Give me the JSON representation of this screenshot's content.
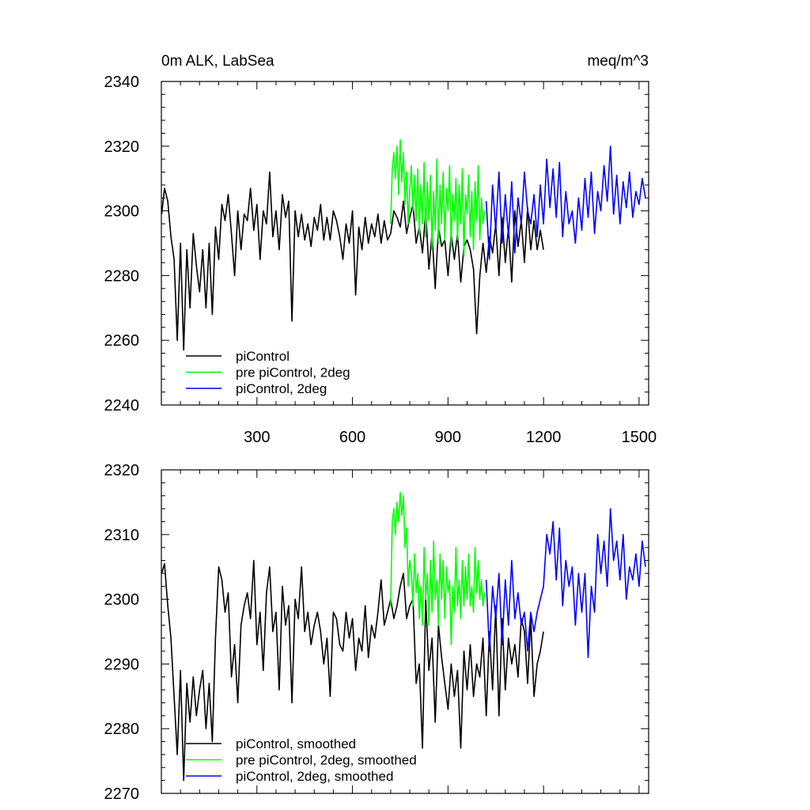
{
  "chart_data": [
    {
      "type": "line",
      "title": "0m ALK, LabSea",
      "units": "meq/m^3",
      "xlim": [
        0,
        1530
      ],
      "ylim": [
        2240,
        2340
      ],
      "xticks": [
        300,
        600,
        900,
        1200,
        1500
      ],
      "yticks": [
        2240,
        2260,
        2280,
        2300,
        2320,
        2340
      ],
      "xtick_labels_shown": true,
      "grid": false,
      "legend_position": "bottom-left",
      "series": [
        {
          "name": "piControl",
          "color": "#000000",
          "x": [
            1,
            10,
            20,
            30,
            40,
            50,
            60,
            70,
            80,
            90,
            100,
            110,
            120,
            130,
            140,
            150,
            160,
            170,
            180,
            190,
            200,
            210,
            220,
            230,
            240,
            250,
            260,
            270,
            280,
            290,
            300,
            310,
            320,
            330,
            340,
            350,
            360,
            370,
            380,
            390,
            400,
            410,
            420,
            430,
            440,
            450,
            460,
            470,
            480,
            490,
            500,
            510,
            520,
            530,
            540,
            550,
            560,
            570,
            580,
            590,
            600,
            610,
            620,
            630,
            640,
            650,
            660,
            670,
            680,
            690,
            700,
            710,
            720,
            730,
            740,
            750,
            760,
            770,
            780,
            790,
            800,
            810,
            820,
            830,
            840,
            850,
            860,
            870,
            880,
            890,
            900,
            910,
            920,
            930,
            940,
            950,
            960,
            970,
            980,
            990,
            1000,
            1010,
            1020,
            1030,
            1040,
            1050,
            1060,
            1070,
            1080,
            1090,
            1100,
            1110,
            1120,
            1130,
            1140,
            1150,
            1160,
            1170,
            1180,
            1190,
            1200
          ],
          "y": [
            2299,
            2307,
            2303,
            2292,
            2285,
            2260,
            2290,
            2257,
            2288,
            2270,
            2293,
            2283,
            2275,
            2288,
            2270,
            2290,
            2268,
            2295,
            2285,
            2302,
            2297,
            2305,
            2293,
            2280,
            2300,
            2288,
            2299,
            2297,
            2307,
            2294,
            2302,
            2285,
            2300,
            2296,
            2312,
            2292,
            2300,
            2288,
            2305,
            2298,
            2303,
            2266,
            2300,
            2292,
            2299,
            2291,
            2296,
            2289,
            2298,
            2294,
            2302,
            2291,
            2298,
            2291,
            2300,
            2297,
            2292,
            2285,
            2296,
            2290,
            2300,
            2274,
            2295,
            2288,
            2298,
            2290,
            2296,
            2292,
            2299,
            2290,
            2297,
            2291,
            2293,
            2300,
            2298,
            2295,
            2303,
            2293,
            2298,
            2302,
            2290,
            2295,
            2287,
            2300,
            2282,
            2293,
            2276,
            2295,
            2289,
            2291,
            2280,
            2293,
            2285,
            2293,
            2278,
            2289,
            2291,
            2288,
            2282,
            2262,
            2280,
            2290,
            2281,
            2292,
            2287,
            2296,
            2280,
            2298,
            2284,
            2295,
            2278,
            2300,
            2289,
            2297,
            2284,
            2301,
            2288,
            2297,
            2288,
            2294,
            2288
          ]
        },
        {
          "name": "pre piControl, 2deg",
          "color": "#00ff00",
          "x": [
            720,
            725,
            730,
            735,
            740,
            745,
            750,
            755,
            760,
            765,
            770,
            775,
            780,
            785,
            790,
            795,
            800,
            805,
            810,
            815,
            820,
            825,
            830,
            835,
            840,
            845,
            850,
            855,
            860,
            865,
            870,
            875,
            880,
            885,
            890,
            895,
            900,
            905,
            910,
            915,
            920,
            925,
            930,
            935,
            940,
            945,
            950,
            955,
            960,
            965,
            970,
            975,
            980,
            985,
            990,
            995,
            1000,
            1005,
            1010,
            1015
          ],
          "y": [
            2296,
            2313,
            2318,
            2310,
            2320,
            2305,
            2322,
            2309,
            2318,
            2302,
            2312,
            2296,
            2306,
            2314,
            2300,
            2311,
            2297,
            2313,
            2293,
            2308,
            2296,
            2315,
            2292,
            2309,
            2297,
            2311,
            2288,
            2306,
            2294,
            2316,
            2290,
            2308,
            2296,
            2312,
            2291,
            2307,
            2300,
            2314,
            2289,
            2305,
            2297,
            2310,
            2291,
            2308,
            2296,
            2313,
            2286,
            2305,
            2299,
            2311,
            2292,
            2306,
            2288,
            2309,
            2297,
            2314,
            2291,
            2304,
            2296,
            2300
          ]
        },
        {
          "name": "piControl, 2deg",
          "color": "#0000ff",
          "x": [
            1020,
            1030,
            1040,
            1050,
            1060,
            1070,
            1080,
            1090,
            1100,
            1110,
            1120,
            1130,
            1140,
            1150,
            1160,
            1170,
            1180,
            1190,
            1200,
            1210,
            1220,
            1230,
            1240,
            1250,
            1260,
            1270,
            1280,
            1290,
            1300,
            1310,
            1320,
            1330,
            1340,
            1350,
            1360,
            1370,
            1380,
            1390,
            1400,
            1410,
            1420,
            1430,
            1440,
            1450,
            1460,
            1470,
            1480,
            1490,
            1500,
            1510,
            1520
          ],
          "y": [
            2303,
            2285,
            2308,
            2294,
            2312,
            2290,
            2305,
            2292,
            2309,
            2287,
            2304,
            2296,
            2312,
            2300,
            2296,
            2305,
            2292,
            2308,
            2296,
            2316,
            2301,
            2313,
            2298,
            2315,
            2292,
            2306,
            2296,
            2300,
            2290,
            2304,
            2294,
            2310,
            2298,
            2312,
            2293,
            2306,
            2300,
            2314,
            2303,
            2320,
            2299,
            2311,
            2296,
            2309,
            2301,
            2312,
            2298,
            2306,
            2302,
            2310,
            2304
          ]
        }
      ]
    },
    {
      "type": "line",
      "title": "",
      "units": "",
      "xlim": [
        0,
        1530
      ],
      "ylim": [
        2270,
        2320
      ],
      "xticks": [
        300,
        600,
        900,
        1200,
        1500
      ],
      "yticks": [
        2270,
        2280,
        2290,
        2300,
        2310,
        2320
      ],
      "xtick_labels_shown": false,
      "grid": false,
      "legend_position": "bottom-left",
      "series": [
        {
          "name": "piControl, smoothed",
          "color": "#000000",
          "x": [
            1,
            10,
            20,
            30,
            40,
            50,
            60,
            70,
            80,
            90,
            100,
            110,
            120,
            130,
            140,
            150,
            160,
            170,
            180,
            190,
            200,
            210,
            220,
            230,
            240,
            250,
            260,
            270,
            280,
            290,
            300,
            310,
            320,
            330,
            340,
            350,
            360,
            370,
            380,
            390,
            400,
            410,
            420,
            430,
            440,
            450,
            460,
            470,
            480,
            490,
            500,
            510,
            520,
            530,
            540,
            550,
            560,
            570,
            580,
            590,
            600,
            610,
            620,
            630,
            640,
            650,
            660,
            670,
            680,
            690,
            700,
            710,
            720,
            730,
            740,
            750,
            760,
            770,
            780,
            790,
            800,
            810,
            820,
            830,
            840,
            850,
            860,
            870,
            880,
            890,
            900,
            910,
            920,
            930,
            940,
            950,
            960,
            970,
            980,
            990,
            1000,
            1010,
            1020,
            1030,
            1040,
            1050,
            1060,
            1070,
            1080,
            1090,
            1100,
            1110,
            1120,
            1130,
            1140,
            1150,
            1160,
            1170,
            1180,
            1190,
            1200
          ],
          "y": [
            2304,
            2305.5,
            2299,
            2294,
            2285,
            2276,
            2289,
            2272,
            2287,
            2281,
            2288,
            2282,
            2286,
            2289,
            2280,
            2287,
            2278,
            2294,
            2305,
            2303,
            2298,
            2301,
            2288,
            2293,
            2284,
            2296,
            2299,
            2301,
            2297,
            2306,
            2293,
            2298,
            2289,
            2301,
            2305,
            2295,
            2298,
            2286,
            2302,
            2296,
            2299,
            2284,
            2300,
            2297,
            2305,
            2295,
            2298,
            2293,
            2296,
            2298,
            2295,
            2290,
            2294,
            2285,
            2298,
            2297,
            2293,
            2292,
            2298,
            2294,
            2297,
            2289,
            2294,
            2292,
            2299,
            2291,
            2296,
            2294,
            2298,
            2303,
            2296,
            2298,
            2300,
            2297,
            2299,
            2302,
            2304,
            2297,
            2299,
            2300,
            2287,
            2290,
            2277,
            2300,
            2289,
            2294,
            2281,
            2296,
            2291,
            2287,
            2283,
            2290,
            2285,
            2289,
            2277,
            2292,
            2286,
            2293,
            2285,
            2290,
            2288,
            2294,
            2282,
            2295,
            2286,
            2299,
            2282,
            2297,
            2286,
            2294,
            2290,
            2293,
            2288,
            2297,
            2295,
            2287,
            2297,
            2285,
            2290,
            2292,
            2295
          ]
        },
        {
          "name": "pre piControl, 2deg, smoothed",
          "color": "#00ff00",
          "x": [
            720,
            725,
            730,
            735,
            740,
            745,
            750,
            755,
            760,
            765,
            770,
            775,
            780,
            785,
            790,
            795,
            800,
            805,
            810,
            815,
            820,
            825,
            830,
            835,
            840,
            845,
            850,
            855,
            860,
            865,
            870,
            875,
            880,
            885,
            890,
            895,
            900,
            905,
            910,
            915,
            920,
            925,
            930,
            935,
            940,
            945,
            950,
            955,
            960,
            965,
            970,
            975,
            980,
            985,
            990,
            995,
            1000,
            1005,
            1010,
            1015
          ],
          "y": [
            2299,
            2312,
            2314,
            2310,
            2315,
            2312,
            2316.5,
            2313,
            2316,
            2308,
            2311,
            2302,
            2306,
            2304,
            2299,
            2307,
            2301,
            2304,
            2297,
            2302,
            2296,
            2308,
            2300,
            2304,
            2296,
            2306,
            2298,
            2309,
            2300,
            2303,
            2296,
            2307,
            2300,
            2306,
            2297,
            2305,
            2301,
            2303,
            2293,
            2302,
            2298,
            2308,
            2299,
            2303,
            2297,
            2306,
            2299,
            2305,
            2300,
            2307,
            2299,
            2302,
            2298,
            2308,
            2301,
            2306,
            2300,
            2303,
            2299,
            2301
          ]
        },
        {
          "name": "piControl, 2deg, smoothed",
          "color": "#0000ff",
          "x": [
            1020,
            1030,
            1040,
            1050,
            1060,
            1070,
            1080,
            1090,
            1100,
            1110,
            1120,
            1130,
            1140,
            1150,
            1160,
            1170,
            1180,
            1190,
            1200,
            1210,
            1220,
            1230,
            1240,
            1250,
            1260,
            1270,
            1280,
            1290,
            1300,
            1310,
            1320,
            1330,
            1340,
            1350,
            1360,
            1370,
            1380,
            1390,
            1400,
            1410,
            1420,
            1430,
            1440,
            1450,
            1460,
            1470,
            1480,
            1490,
            1500,
            1510,
            1520
          ],
          "y": [
            2303,
            2292,
            2302,
            2297,
            2304,
            2293,
            2303,
            2296,
            2306,
            2297,
            2301,
            2296,
            2298,
            2292,
            2298,
            2295,
            2298,
            2300,
            2302,
            2310,
            2307,
            2312,
            2303,
            2311,
            2299,
            2306,
            2302,
            2305,
            2296,
            2304,
            2298,
            2304,
            2291,
            2302,
            2298,
            2310,
            2304,
            2309,
            2302,
            2314,
            2306,
            2309,
            2303,
            2310,
            2300,
            2305,
            2303,
            2307,
            2302,
            2309,
            2305
          ]
        }
      ]
    }
  ]
}
